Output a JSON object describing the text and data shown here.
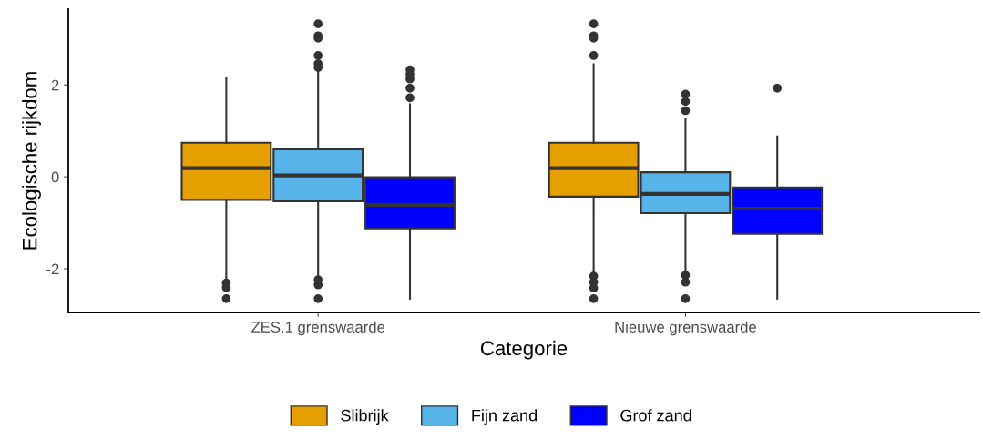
{
  "chart_data": {
    "type": "box",
    "xlabel": "Categorie",
    "ylabel": "Ecologische rijkdom",
    "categories": [
      "ZES.1 grenswaarde",
      "Nieuwe grenswaarde"
    ],
    "ylim": [
      -2.95,
      3.65
    ],
    "yticks": [
      -2,
      0,
      2
    ],
    "grid": false,
    "legend": "bottom",
    "series": [
      {
        "name": "Slibrijk",
        "color": "#e69f00",
        "boxes": [
          {
            "low": -2.27,
            "q1": -0.5,
            "median": 0.19,
            "q3": 0.74,
            "high": 2.15,
            "outliers": [
              -2.31,
              -2.41,
              -2.65
            ]
          },
          {
            "low": -2.13,
            "q1": -0.43,
            "median": 0.19,
            "q3": 0.74,
            "high": 2.45,
            "outliers": [
              3.33,
              3.07,
              3.02,
              2.64,
              -2.16,
              -2.29,
              -2.42,
              -2.65
            ]
          }
        ]
      },
      {
        "name": "Fijn zand",
        "color": "#56b4e9",
        "boxes": [
          {
            "low": -2.19,
            "q1": -0.53,
            "median": 0.03,
            "q3": 0.6,
            "high": 2.33,
            "outliers": [
              3.33,
              3.07,
              3.02,
              2.64,
              2.46,
              2.38,
              -2.24,
              -2.35,
              -2.65
            ]
          },
          {
            "low": -2.09,
            "q1": -0.79,
            "median": -0.37,
            "q3": 0.1,
            "high": 1.27,
            "outliers": [
              1.8,
              1.64,
              1.44,
              -2.14,
              -2.29,
              -2.65
            ]
          }
        ]
      },
      {
        "name": "Grof zand",
        "color": "#0000ff",
        "boxes": [
          {
            "low": -2.65,
            "q1": -1.12,
            "median": -0.61,
            "q3": -0.01,
            "high": 1.58,
            "outliers": [
              2.33,
              2.23,
              2.13,
              1.93,
              1.72
            ]
          },
          {
            "low": -2.65,
            "q1": -1.24,
            "median": -0.69,
            "q3": -0.23,
            "high": 0.88,
            "outliers": [
              1.93
            ]
          }
        ]
      }
    ]
  }
}
